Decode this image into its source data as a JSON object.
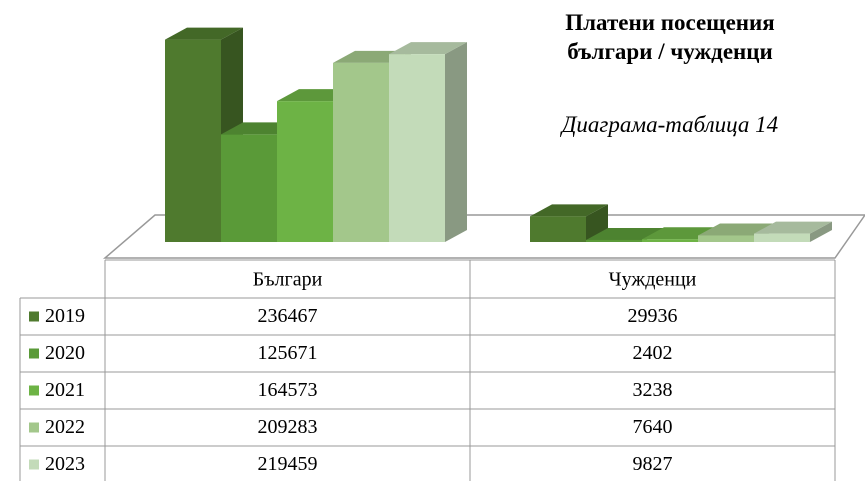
{
  "chart_data": {
    "type": "bar3d",
    "title": "Платени посещения българи / чужденци",
    "subtitle": "Диаграма-таблица 14",
    "categories": [
      "Българи",
      "Чужденци"
    ],
    "series": [
      {
        "name": "2019",
        "color": "#4f7a2e",
        "values": [
          236467,
          29936
        ]
      },
      {
        "name": "2020",
        "color": "#5a9a38",
        "values": [
          125671,
          2402
        ]
      },
      {
        "name": "2021",
        "color": "#6db345",
        "values": [
          164573,
          3238
        ]
      },
      {
        "name": "2022",
        "color": "#a3c78b",
        "values": [
          209283,
          7640
        ]
      },
      {
        "name": "2023",
        "color": "#c3dbb9",
        "values": [
          219459,
          9827
        ]
      }
    ],
    "ylim": [
      0,
      250000
    ],
    "data_table": true
  }
}
